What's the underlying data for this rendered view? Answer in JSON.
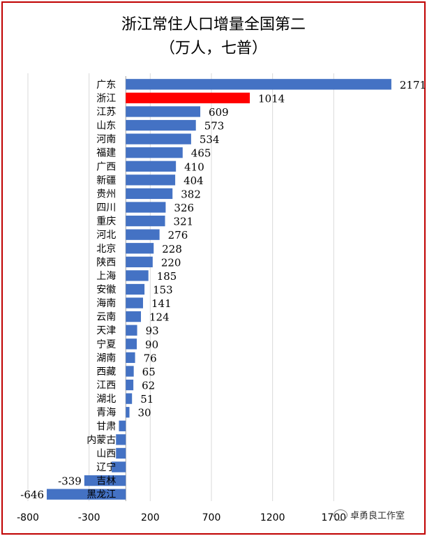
{
  "chart_data": {
    "type": "bar",
    "orientation": "horizontal",
    "title": "浙江常住人口增量全国第二",
    "subtitle": "（万人，七普）",
    "categories": [
      "广东",
      "浙江",
      "江苏",
      "山东",
      "河南",
      "福建",
      "广西",
      "新疆",
      "贵州",
      "四川",
      "重庆",
      "河北",
      "北京",
      "陕西",
      "上海",
      "安徽",
      "海南",
      "云南",
      "天津",
      "宁夏",
      "湖南",
      "西藏",
      "江西",
      "湖北",
      "青海",
      "甘肃",
      "内蒙古",
      "山西",
      "辽宁",
      "吉林",
      "黑龙江"
    ],
    "values": [
      2171,
      1014,
      609,
      573,
      534,
      465,
      410,
      404,
      382,
      326,
      321,
      276,
      228,
      220,
      185,
      153,
      141,
      124,
      93,
      90,
      76,
      65,
      62,
      51,
      30,
      -56,
      -80,
      -80,
      -115,
      -339,
      -646
    ],
    "value_labels": [
      "2171",
      "1014",
      "609",
      "573",
      "534",
      "465",
      "410",
      "404",
      "382",
      "326",
      "321",
      "276",
      "228",
      "220",
      "185",
      "153",
      "141",
      "124",
      "93",
      "90",
      "76",
      "65",
      "62",
      "51",
      "30",
      "",
      "",
      "",
      "",
      "-339",
      "-646"
    ],
    "highlight_category": "浙江",
    "highlight_color": "#ff0000",
    "bar_color": "#4472c4",
    "xlim": [
      -800,
      2200
    ],
    "xticks": [
      -800,
      -300,
      200,
      700,
      1200,
      1700
    ],
    "xtick_labels": [
      "-800",
      "-300",
      "200",
      "700",
      "1200",
      "1700"
    ],
    "grid": true,
    "legend": "none"
  },
  "watermark": "卓勇良工作室",
  "watermark_icon": "wechat-icon"
}
